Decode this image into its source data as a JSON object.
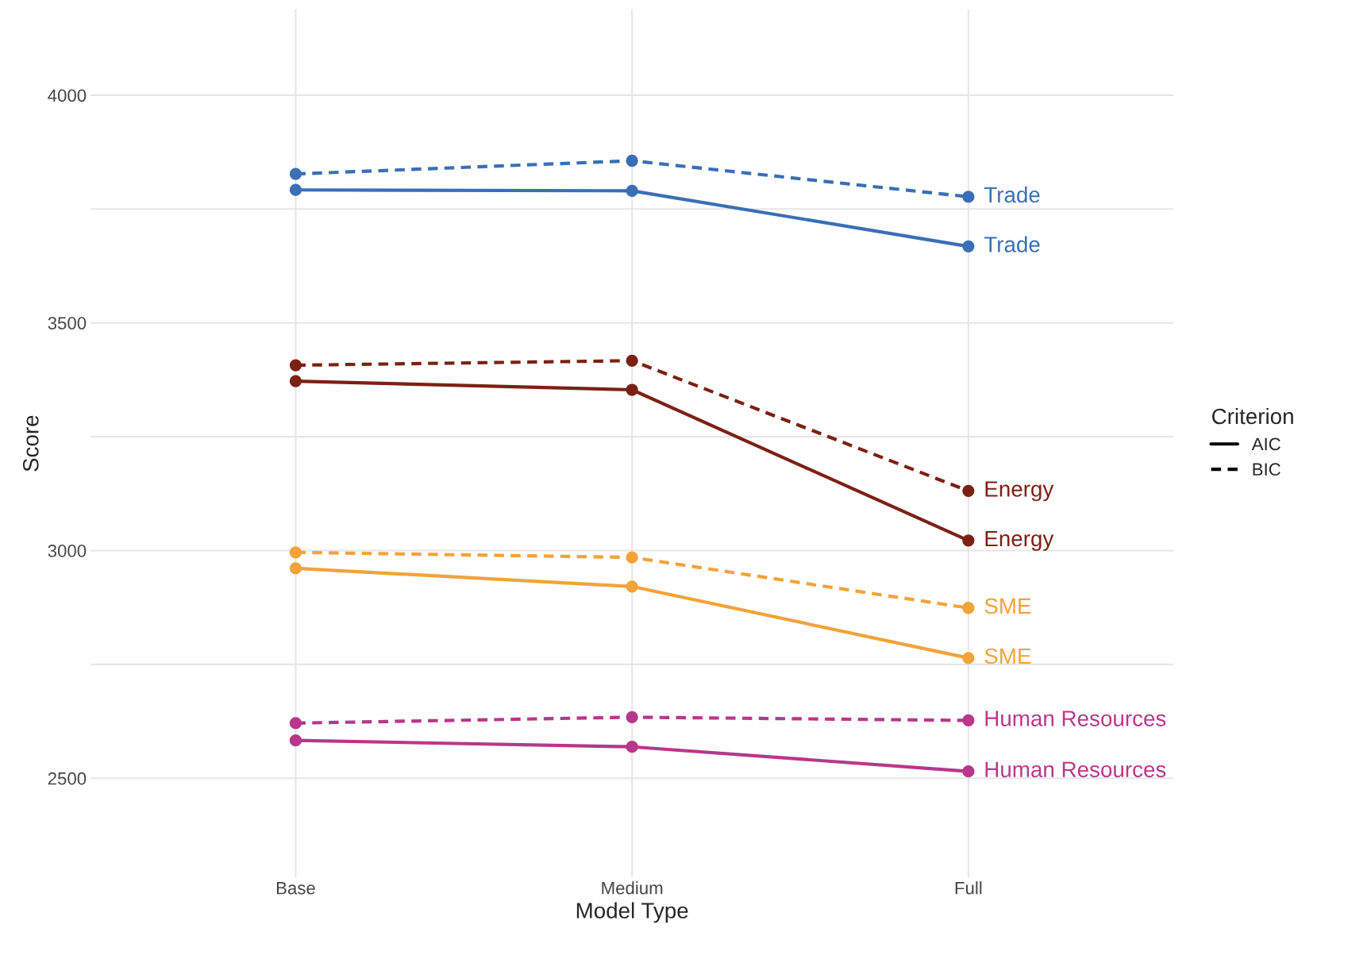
{
  "chart_data": {
    "type": "line",
    "xlabel": "Model Type",
    "ylabel": "Score",
    "legend_title": "Criterion",
    "legend": "right",
    "grid": true,
    "marker": "circle",
    "categories": [
      "Base",
      "Medium",
      "Full"
    ],
    "ylim": [
      2282,
      4188
    ],
    "yticks": [
      2500,
      {
        "value": 2750,
        "label": null
      },
      3000,
      {
        "value": 3250,
        "label": null
      },
      3500,
      {
        "value": 3750,
        "label": null
      },
      4000
    ],
    "series": [
      {
        "name": "AIC",
        "color": "#000000",
        "line_style": "solid",
        "values": [
          null,
          null,
          null
        ]
      },
      {
        "name": "BIC",
        "color": "#000000",
        "line_style": "dashed",
        "values": [
          null,
          null,
          null
        ]
      },
      {
        "name": "Trade",
        "color": "#3a6fb5",
        "line_style": "dashed",
        "values": [
          3827,
          3856,
          3777
        ]
      },
      {
        "name": "Trade",
        "color": "#3a6fb5",
        "line_style": "solid",
        "values": [
          3792,
          3790,
          3668
        ]
      },
      {
        "name": "Energy",
        "color": "#7b2114",
        "line_style": "dashed",
        "values": [
          3407,
          3417,
          3131
        ]
      },
      {
        "name": "Energy",
        "color": "#7b2114",
        "line_style": "solid",
        "values": [
          3372,
          3353,
          3022
        ]
      },
      {
        "name": "SME",
        "color": "#f2a33a",
        "line_style": "dashed",
        "values": [
          2996,
          2985,
          2874
        ]
      },
      {
        "name": "SME",
        "color": "#f2a33a",
        "line_style": "solid",
        "values": [
          2961,
          2921,
          2764
        ]
      },
      {
        "name": "Human Resources",
        "color": "#b8378a",
        "line_style": "dashed",
        "values": [
          2621,
          2634,
          2627
        ]
      },
      {
        "name": "Human Resources",
        "color": "#b8378a",
        "line_style": "solid",
        "values": [
          2583,
          2569,
          2515
        ]
      }
    ]
  }
}
